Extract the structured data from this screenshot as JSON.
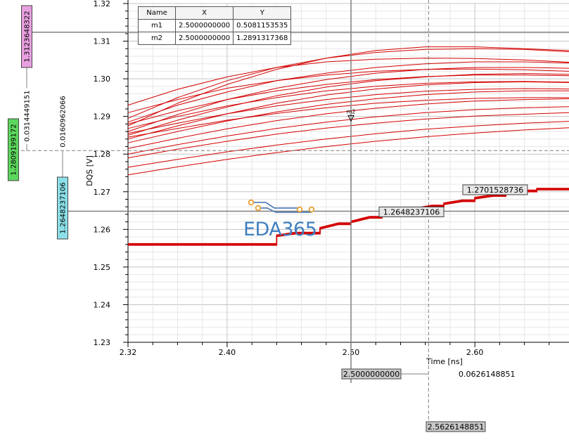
{
  "chart_data": {
    "type": "line",
    "title": "",
    "xlabel": "Time [ns]",
    "ylabel": "DQS [V]",
    "xlim": [
      2.32,
      2.676
    ],
    "ylim": [
      1.23,
      1.32
    ],
    "x_ticks": [
      "2.32",
      "2.40",
      "2.50",
      "2.60"
    ],
    "y_ticks": [
      "1.23",
      "1.24",
      "1.25",
      "1.26",
      "1.27",
      "1.28",
      "1.29",
      "1.30",
      "1.31",
      "1.32"
    ],
    "grid": true,
    "legend": "none",
    "series_color": "#d40000",
    "eye_curves": [
      {
        "values": [
          1.2875,
          1.2935,
          1.2985,
          1.3025,
          1.3055,
          1.3075,
          1.3085,
          1.3085,
          1.308,
          1.3075
        ]
      },
      {
        "values": [
          1.2895,
          1.295,
          1.2995,
          1.303,
          1.3055,
          1.307,
          1.3078,
          1.308,
          1.3078,
          1.3072
        ]
      },
      {
        "values": [
          1.293,
          1.2972,
          1.3005,
          1.303,
          1.3045,
          1.3052,
          1.3055,
          1.3054,
          1.305,
          1.3044
        ]
      },
      {
        "values": [
          1.2885,
          1.293,
          1.2965,
          1.2995,
          1.3015,
          1.303,
          1.304,
          1.3045,
          1.3045,
          1.3042
        ]
      },
      {
        "values": [
          1.291,
          1.2945,
          1.2975,
          1.2995,
          1.301,
          1.302,
          1.3025,
          1.3026,
          1.3024,
          1.302
        ]
      },
      {
        "values": [
          1.286,
          1.2905,
          1.2945,
          1.2975,
          1.2998,
          1.3015,
          1.3025,
          1.303,
          1.303,
          1.3028
        ]
      },
      {
        "values": [
          1.288,
          1.2915,
          1.2945,
          1.2968,
          1.2985,
          1.2998,
          1.3006,
          1.301,
          1.301,
          1.3008
        ]
      },
      {
        "values": [
          1.285,
          1.289,
          1.2925,
          1.2955,
          1.2978,
          1.2995,
          1.3005,
          1.3012,
          1.3014,
          1.3012
        ]
      },
      {
        "values": [
          1.2868,
          1.29,
          1.2928,
          1.295,
          1.2968,
          1.298,
          1.2988,
          1.2992,
          1.2993,
          1.2991
        ]
      },
      {
        "values": [
          1.284,
          1.2875,
          1.2907,
          1.2935,
          1.2957,
          1.2973,
          1.2984,
          1.299,
          1.2992,
          1.299
        ]
      },
      {
        "values": [
          1.2855,
          1.2882,
          1.2907,
          1.2928,
          1.2945,
          1.2958,
          1.2967,
          1.2972,
          1.2974,
          1.2973
        ]
      },
      {
        "values": [
          1.283,
          1.286,
          1.2888,
          1.2912,
          1.2932,
          1.2947,
          1.2958,
          1.2965,
          1.2968,
          1.2968
        ]
      },
      {
        "values": [
          1.2845,
          1.2868,
          1.289,
          1.2908,
          1.2923,
          1.2935,
          1.2943,
          1.2948,
          1.295,
          1.295
        ]
      },
      {
        "values": [
          1.2815,
          1.2842,
          1.2867,
          1.2889,
          1.2907,
          1.2922,
          1.2933,
          1.2941,
          1.2945,
          1.2947
        ]
      },
      {
        "values": [
          1.28,
          1.2825,
          1.2848,
          1.2868,
          1.2885,
          1.2899,
          1.291,
          1.2918,
          1.2923,
          1.2926
        ]
      },
      {
        "values": [
          1.279,
          1.2813,
          1.2834,
          1.2853,
          1.2869,
          1.2882,
          1.2893,
          1.2901,
          1.2906,
          1.291
        ]
      },
      {
        "values": [
          1.2765,
          1.2786,
          1.2806,
          1.2824,
          1.284,
          1.2854,
          1.2866,
          1.2875,
          1.2882,
          1.2887
        ]
      },
      {
        "values": [
          1.2745,
          1.2766,
          1.2786,
          1.2804,
          1.282,
          1.2834,
          1.2846,
          1.2856,
          1.2864,
          1.287
        ]
      }
    ],
    "eye_x": [
      2.32,
      2.36,
      2.4,
      2.44,
      2.48,
      2.52,
      2.56,
      2.6,
      2.64,
      2.676
    ],
    "step_curve": {
      "x": [
        2.32,
        2.4,
        2.44,
        2.455,
        2.475,
        2.49,
        2.5,
        2.515,
        2.525,
        2.54,
        2.55,
        2.565,
        2.575,
        2.59,
        2.6,
        2.615,
        2.625,
        2.64,
        2.65,
        2.676
      ],
      "y": [
        1.256,
        1.256,
        1.2583,
        1.259,
        1.2603,
        1.2615,
        1.262,
        1.2632,
        1.2638,
        1.2648,
        1.2653,
        1.2662,
        1.2668,
        1.2676,
        1.2683,
        1.269,
        1.2696,
        1.2702,
        1.2707,
        1.2707
      ]
    },
    "hline_dashed_y": 1.2809199172,
    "markers": {
      "header": [
        "Name",
        "X",
        "Y"
      ],
      "rows": [
        [
          "m1",
          "2.5000000000",
          "0.5081153535"
        ],
        [
          "m2",
          "2.5000000000",
          "1.2891317368"
        ]
      ],
      "m2_label": "m2"
    },
    "cursors": {
      "vertical_x": 2.5,
      "vertical_x2": 2.5626148851,
      "horizontal_y": 1.3123648322,
      "horizontal_y2": 1.2648237106,
      "labels": {
        "y_top": "1.3123648322",
        "y_top_delta": "0.0314449151",
        "y_dashed": "1.2809199172",
        "y_dashed_delta": "0.0160962066",
        "y_cursor": "1.2648237106",
        "point_cursor": "1.2648237106",
        "point_dashed": "1.2701528736",
        "x_cursor": "2.5000000000",
        "x_delta": "0.0626148851",
        "x_dashed": "2.5626148851"
      },
      "colors": {
        "y_top": "#e8a0e0",
        "y_dashed": "#5dd65d",
        "y_cursor": "#8be0e8",
        "gray": "#c8c8c8",
        "point_fill": "#e6e6e6"
      }
    }
  },
  "watermark": "EDA365"
}
